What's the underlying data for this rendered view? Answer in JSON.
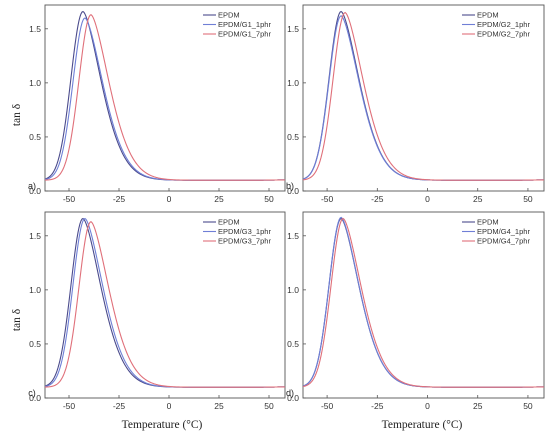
{
  "figure": {
    "ylabel": "tan δ",
    "xlabel": "Temperature (°C)"
  },
  "colors": {
    "EPDM": "#4b4b8c",
    "phr1": "#6f7fd6",
    "phr7": "#e0707a",
    "frame": "#555555"
  },
  "chart_data": [
    {
      "type": "line",
      "panel_label": "a)",
      "xlim": [
        -62,
        58
      ],
      "ylim": [
        0,
        1.72
      ],
      "xticks": [
        -50,
        -25,
        0,
        25,
        50
      ],
      "yticks": [
        0.0,
        0.5,
        1.0,
        1.5
      ],
      "legend_position": "top-right",
      "series": [
        {
          "name": "EPDM",
          "peak_x": -43,
          "peak_y": 1.66,
          "color_key": "EPDM"
        },
        {
          "name": "EPDM/G1_1phr",
          "peak_x": -42,
          "peak_y": 1.6,
          "color_key": "phr1"
        },
        {
          "name": "EPDM/G1_7phr",
          "peak_x": -39,
          "peak_y": 1.63,
          "color_key": "phr7"
        }
      ]
    },
    {
      "type": "line",
      "panel_label": "b)",
      "xlim": [
        -62,
        58
      ],
      "ylim": [
        0,
        1.72
      ],
      "xticks": [
        -50,
        -25,
        0,
        25,
        50
      ],
      "yticks": [
        0.0,
        0.5,
        1.0,
        1.5
      ],
      "legend_position": "top-right",
      "series": [
        {
          "name": "EPDM",
          "peak_x": -43,
          "peak_y": 1.66,
          "color_key": "EPDM"
        },
        {
          "name": "EPDM/G2_1phr",
          "peak_x": -43,
          "peak_y": 1.62,
          "color_key": "phr1"
        },
        {
          "name": "EPDM/G2_7phr",
          "peak_x": -41,
          "peak_y": 1.65,
          "color_key": "phr7"
        }
      ]
    },
    {
      "type": "line",
      "panel_label": "c)",
      "xlim": [
        -62,
        58
      ],
      "ylim": [
        0,
        1.72
      ],
      "xticks": [
        -50,
        -25,
        0,
        25,
        50
      ],
      "yticks": [
        0.0,
        0.5,
        1.0,
        1.5
      ],
      "legend_position": "top-right",
      "series": [
        {
          "name": "EPDM",
          "peak_x": -43,
          "peak_y": 1.66,
          "color_key": "EPDM"
        },
        {
          "name": "EPDM/G3_1phr",
          "peak_x": -42,
          "peak_y": 1.66,
          "color_key": "phr1"
        },
        {
          "name": "EPDM/G3_7phr",
          "peak_x": -39,
          "peak_y": 1.63,
          "color_key": "phr7"
        }
      ]
    },
    {
      "type": "line",
      "panel_label": "d)",
      "xlim": [
        -62,
        58
      ],
      "ylim": [
        0,
        1.72
      ],
      "xticks": [
        -50,
        -25,
        0,
        25,
        50
      ],
      "yticks": [
        0.0,
        0.5,
        1.0,
        1.5
      ],
      "legend_position": "top-right",
      "series": [
        {
          "name": "EPDM",
          "peak_x": -43,
          "peak_y": 1.66,
          "color_key": "EPDM"
        },
        {
          "name": "EPDM/G4_1phr",
          "peak_x": -43,
          "peak_y": 1.67,
          "color_key": "phr1"
        },
        {
          "name": "EPDM/G4_7phr",
          "peak_x": -42,
          "peak_y": 1.66,
          "color_key": "phr7"
        }
      ]
    }
  ]
}
